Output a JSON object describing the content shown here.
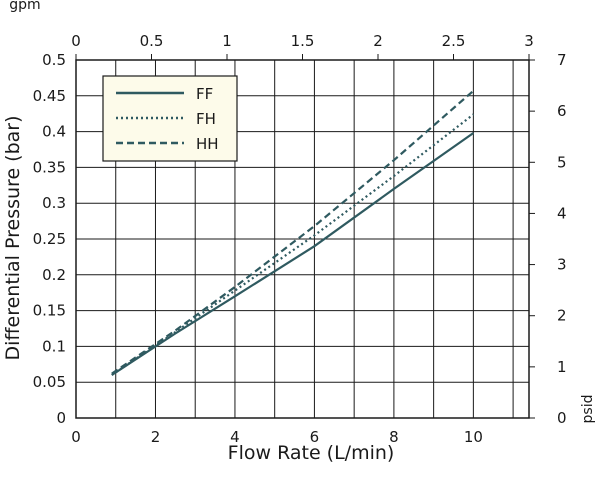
{
  "chart_data": {
    "type": "line",
    "xlabel": "Flow Rate (L/min)",
    "ylabel": "Differential Pressure (bar)",
    "top_axis_label": "gpm",
    "right_axis_label": "psid",
    "xlim": [
      0,
      11.4
    ],
    "ylim": [
      0,
      0.5
    ],
    "top_xlim": [
      0,
      3
    ],
    "right_ylim": [
      0,
      7
    ],
    "x_ticks": [
      "0",
      "2",
      "4",
      "6",
      "8",
      "10"
    ],
    "y_ticks": [
      "0",
      "0.05",
      "0.1",
      "0.15",
      "0.2",
      "0.25",
      "0.3",
      "0.35",
      "0.4",
      "0.45",
      "0.5"
    ],
    "top_ticks": [
      "0",
      "0.5",
      "1",
      "1.5",
      "2",
      "2.5",
      "3"
    ],
    "right_ticks": [
      "0",
      "1",
      "2",
      "3",
      "4",
      "5",
      "6",
      "7"
    ],
    "grid": true,
    "legend_position": "top-left",
    "line_color": "#2f5a60",
    "series": [
      {
        "name": "FF",
        "style": "solid",
        "x": [
          0.9,
          2.5,
          4,
          6,
          8,
          10
        ],
        "y": [
          0.06,
          0.118,
          0.17,
          0.24,
          0.32,
          0.398
        ]
      },
      {
        "name": "FH",
        "style": "dotted",
        "x": [
          0.9,
          2.5,
          4,
          6,
          8,
          10
        ],
        "y": [
          0.06,
          0.12,
          0.178,
          0.255,
          0.338,
          0.424
        ]
      },
      {
        "name": "HH",
        "style": "dashed",
        "x": [
          0.9,
          2.5,
          4,
          6,
          8,
          10
        ],
        "y": [
          0.062,
          0.122,
          0.183,
          0.268,
          0.36,
          0.457
        ]
      }
    ]
  }
}
